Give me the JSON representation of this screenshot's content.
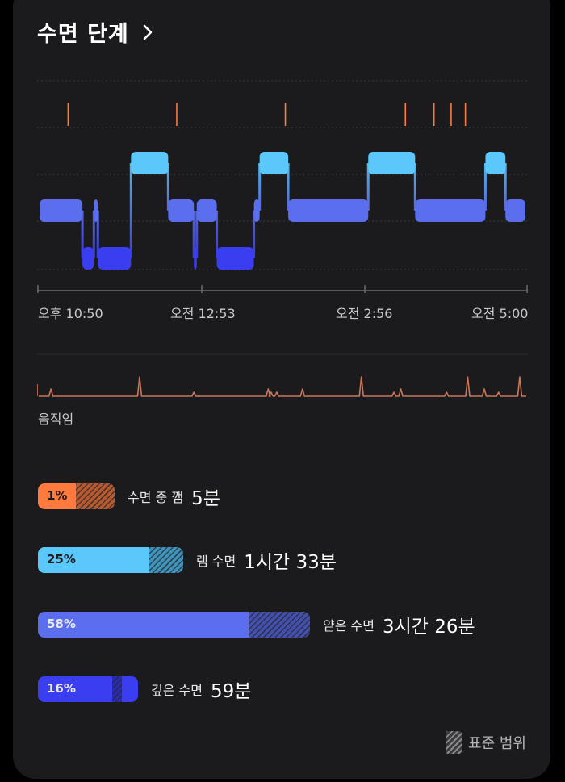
{
  "title": "수면 단계",
  "icons": {
    "chevron": "chevron-right-icon",
    "legend": "hatch-swatch-icon"
  },
  "colors": {
    "awake": "#ff7a3c",
    "rem": "#5ac8fa",
    "light": "#5b6eed",
    "deep": "#3a3ef0",
    "background": "#1b1b1d",
    "movement": "#c9775a"
  },
  "hypnogram": {
    "x_tick_labels": [
      "오후 10:50",
      "오전 12:53",
      "오전 2:56",
      "오전 5:00"
    ],
    "levels": [
      "awake",
      "rem",
      "light",
      "deep"
    ],
    "awake_markers_min": [
      50,
      240,
      430,
      640,
      690,
      720,
      745
    ],
    "segments": [
      {
        "stage": "light",
        "start_min": 0,
        "end_min": 75
      },
      {
        "stage": "deep",
        "start_min": 75,
        "end_min": 95
      },
      {
        "stage": "light",
        "start_min": 95,
        "end_min": 102
      },
      {
        "stage": "deep",
        "start_min": 102,
        "end_min": 160
      },
      {
        "stage": "rem",
        "start_min": 160,
        "end_min": 225
      },
      {
        "stage": "light",
        "start_min": 225,
        "end_min": 270
      },
      {
        "stage": "deep",
        "start_min": 270,
        "end_min": 275
      },
      {
        "stage": "light",
        "start_min": 275,
        "end_min": 310
      },
      {
        "stage": "deep",
        "start_min": 310,
        "end_min": 375
      },
      {
        "stage": "light",
        "start_min": 375,
        "end_min": 385
      },
      {
        "stage": "rem",
        "start_min": 385,
        "end_min": 435
      },
      {
        "stage": "light",
        "start_min": 435,
        "end_min": 575
      },
      {
        "stage": "rem",
        "start_min": 575,
        "end_min": 657
      },
      {
        "stage": "light",
        "start_min": 657,
        "end_min": 780
      },
      {
        "stage": "rem",
        "start_min": 780,
        "end_min": 815
      },
      {
        "stage": "light",
        "start_min": 815,
        "end_min": 850
      }
    ]
  },
  "movement": {
    "label": "움직임",
    "spike_min": [
      20,
      175,
      270,
      400,
      405,
      415,
      460,
      563,
      620,
      632,
      712,
      749,
      778,
      803,
      840
    ]
  },
  "stages": [
    {
      "key": "awake",
      "pct_label": "1%",
      "label": "수면 중 깸",
      "duration": "5분",
      "fraction": 0.01
    },
    {
      "key": "rem",
      "pct_label": "25%",
      "label": "렘 수면",
      "duration": "1시간 33분",
      "fraction": 0.25
    },
    {
      "key": "light",
      "pct_label": "58%",
      "label": "얕은 수면",
      "duration": "3시간 26분",
      "fraction": 0.58
    },
    {
      "key": "deep",
      "pct_label": "16%",
      "label": "깊은 수면",
      "duration": "59분",
      "fraction": 0.16
    }
  ],
  "legend": {
    "label": "표준 범위"
  }
}
